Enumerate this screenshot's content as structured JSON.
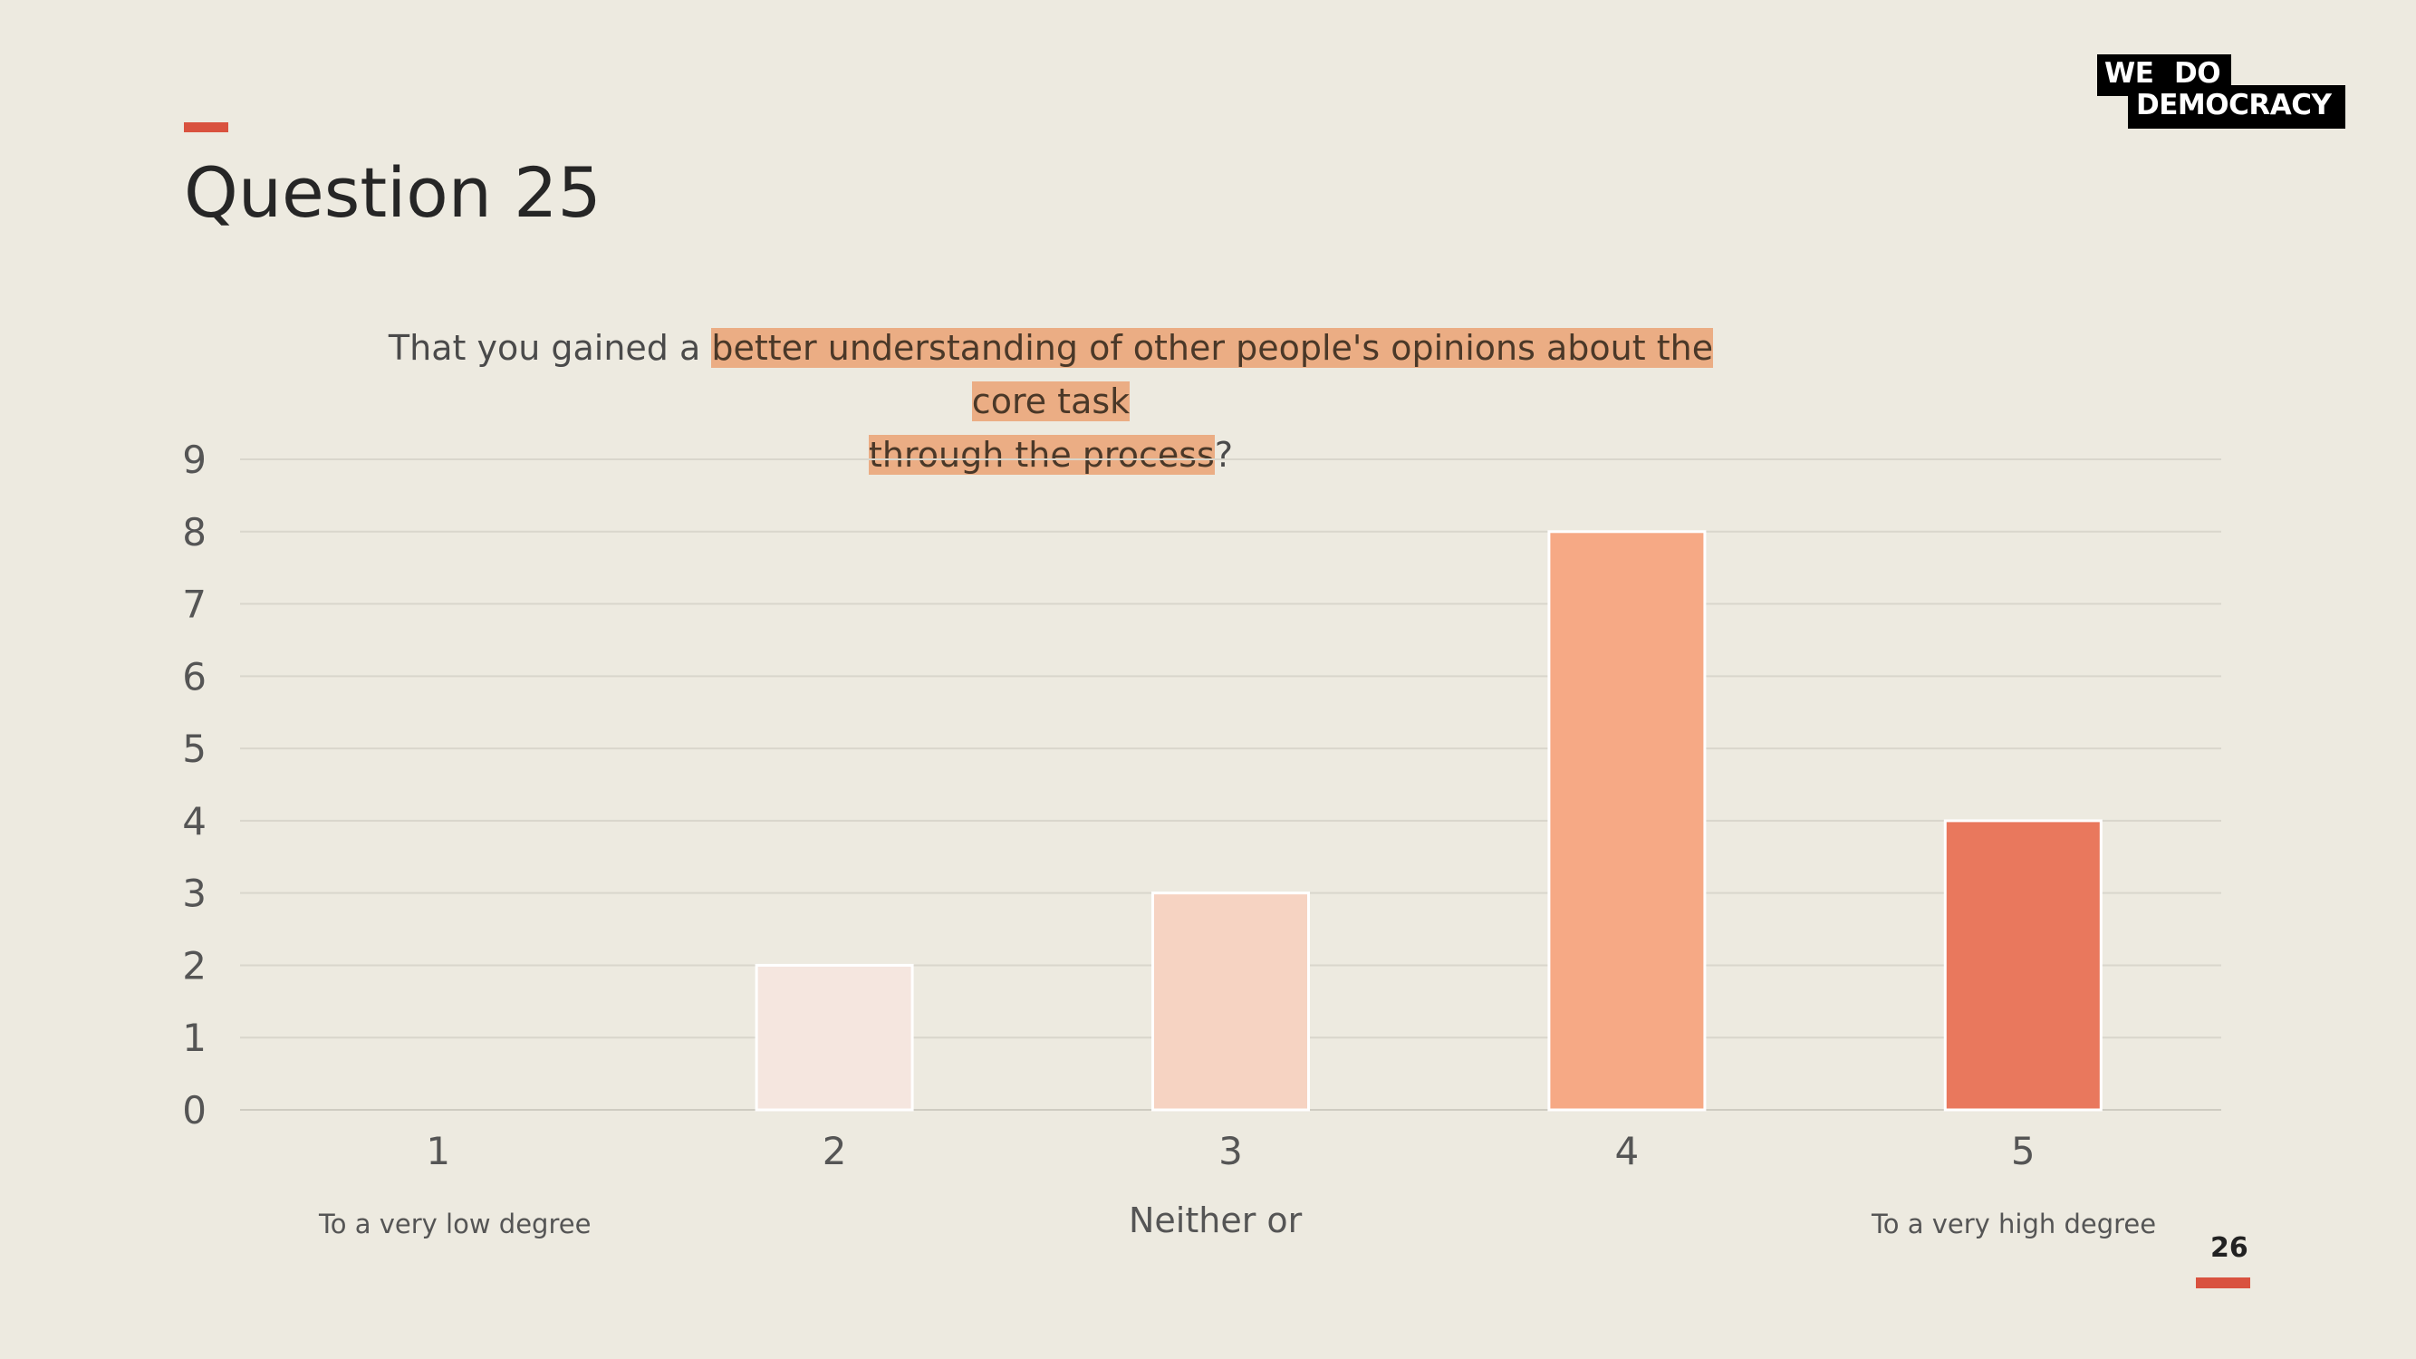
{
  "slide": {
    "title": "Question 25",
    "page_number": "26",
    "accent_color": "#d9523f",
    "background": "#edeae0"
  },
  "logo": {
    "line1_left": "WE",
    "line1_right": "DO",
    "line2": "DEMOCRACY"
  },
  "question": {
    "prefix": "That you gained a ",
    "highlight_1": "better understanding of other people's opinions about the core task",
    "highlight_2": "through the process",
    "suffix": "?"
  },
  "anchors": {
    "low": "To a very low degree",
    "mid": "Neither or",
    "high": "To a very high degree"
  },
  "chart_data": {
    "type": "bar",
    "categories": [
      "1",
      "2",
      "3",
      "4",
      "5"
    ],
    "values": [
      0,
      2,
      3,
      8,
      4
    ],
    "colors": [
      "#f5e6df",
      "#f5e6df",
      "#f6d3c2",
      "#f6a985",
      "#e9785d"
    ],
    "ylim": [
      0,
      9
    ],
    "yticks": [
      0,
      1,
      2,
      3,
      4,
      5,
      6,
      7,
      8,
      9
    ],
    "grid": true,
    "title": "",
    "xlabel": "",
    "ylabel": ""
  }
}
